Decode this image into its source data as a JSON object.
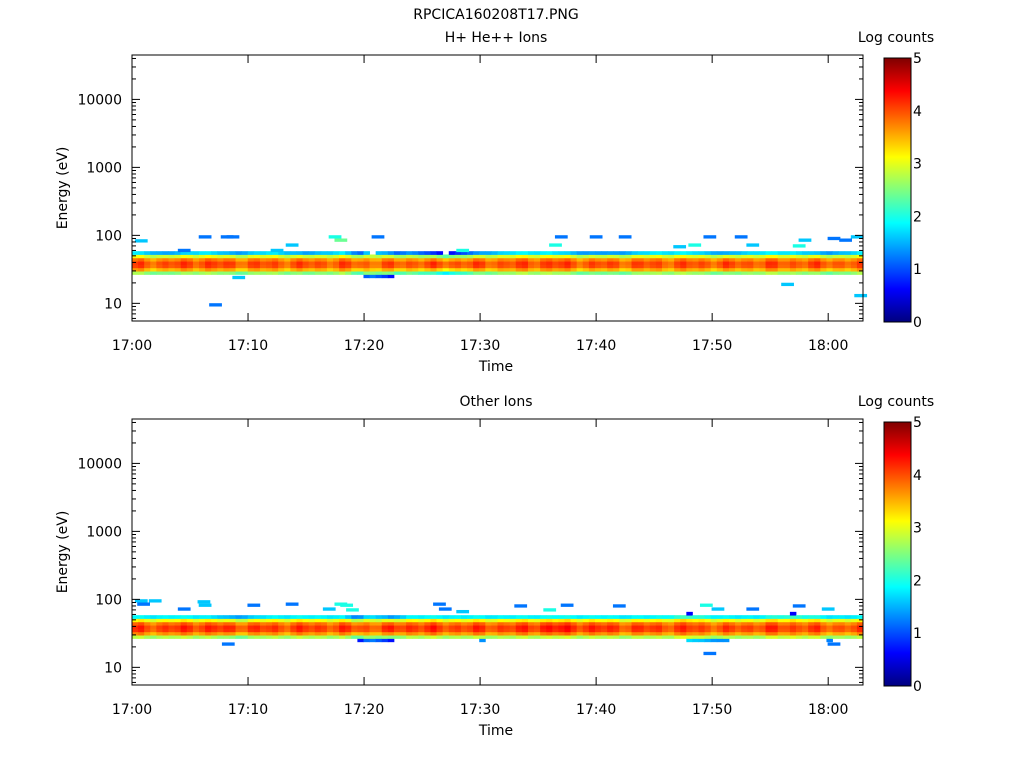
{
  "figure": {
    "title": "RPCICA160208T17.PNG"
  },
  "colormap": [
    "#00007f",
    "#0000ff",
    "#007fff",
    "#00ffff",
    "#7fff7f",
    "#ffff00",
    "#ff7f00",
    "#ff0000",
    "#7f0000"
  ],
  "chart_data": [
    {
      "type": "heatmap",
      "title": "H+ He++ Ions",
      "xlabel": "Time",
      "ylabel": "Energy (eV)",
      "x_ticks": [
        "17:00",
        "17:10",
        "17:20",
        "17:30",
        "17:40",
        "17:50",
        "18:00"
      ],
      "x_range_minutes": [
        0,
        63
      ],
      "y_scale": "log",
      "y_range": [
        5.5,
        45000
      ],
      "y_ticks": [
        "10",
        "100",
        "1000",
        "10000"
      ],
      "colorbar": {
        "label": "Log counts",
        "range": [
          0,
          5
        ],
        "ticks": [
          "0",
          "1",
          "2",
          "3",
          "4",
          "5"
        ]
      },
      "band": {
        "core_energy_eV": [
          33,
          45
        ],
        "low_energy_eV": 27,
        "high_energy_eV": 60
      },
      "columns": [
        {
          "x": 0,
          "lo": 27,
          "hi": 60,
          "peak": 4.0
        },
        {
          "x": 3,
          "lo": 28,
          "hi": 58,
          "peak": 4.0
        },
        {
          "x": 6,
          "lo": 28,
          "hi": 60,
          "peak": 4.1
        },
        {
          "x": 9,
          "lo": 28,
          "hi": 58,
          "peak": 4.0
        },
        {
          "x": 12,
          "lo": 28,
          "hi": 60,
          "peak": 4.0
        },
        {
          "x": 15,
          "lo": 28,
          "hi": 58,
          "peak": 4.0
        },
        {
          "x": 18,
          "lo": 28,
          "hi": 60,
          "peak": 4.0
        },
        {
          "x": 20.5,
          "lo": 24,
          "hi": 55,
          "peak": 3.9
        },
        {
          "x": 24,
          "lo": 26,
          "hi": 58,
          "peak": 4.0
        },
        {
          "x": 27,
          "lo": 27,
          "hi": 55,
          "peak": 4.0
        },
        {
          "x": 30,
          "lo": 27,
          "hi": 58,
          "peak": 4.0
        },
        {
          "x": 33,
          "lo": 28,
          "hi": 60,
          "peak": 4.0
        },
        {
          "x": 36,
          "lo": 27,
          "hi": 60,
          "peak": 4.1
        },
        {
          "x": 39,
          "lo": 27,
          "hi": 58,
          "peak": 4.0
        },
        {
          "x": 42,
          "lo": 27,
          "hi": 58,
          "peak": 4.0
        },
        {
          "x": 45,
          "lo": 28,
          "hi": 60,
          "peak": 4.0
        },
        {
          "x": 48,
          "lo": 28,
          "hi": 60,
          "peak": 4.0
        },
        {
          "x": 51,
          "lo": 28,
          "hi": 58,
          "peak": 4.0
        },
        {
          "x": 54,
          "lo": 28,
          "hi": 60,
          "peak": 4.0
        },
        {
          "x": 57,
          "lo": 27,
          "hi": 60,
          "peak": 4.0
        },
        {
          "x": 60,
          "lo": 27,
          "hi": 58,
          "peak": 4.0
        },
        {
          "x": 63,
          "lo": 27,
          "hi": 60,
          "peak": 3.9
        }
      ],
      "sparse_pixels": [
        {
          "t": 0.8,
          "e": 83,
          "v": 0.4
        },
        {
          "t": 4.5,
          "e": 60,
          "v": 0.3
        },
        {
          "t": 6.3,
          "e": 95,
          "v": 0.3
        },
        {
          "t": 8.2,
          "e": 95,
          "v": 0.3
        },
        {
          "t": 8.7,
          "e": 95,
          "v": 0.3
        },
        {
          "t": 7.2,
          "e": 9.5,
          "v": 0.3
        },
        {
          "t": 9.2,
          "e": 24,
          "v": 0.4
        },
        {
          "t": 12.5,
          "e": 60,
          "v": 0.4
        },
        {
          "t": 13.8,
          "e": 72,
          "v": 0.4
        },
        {
          "t": 17.5,
          "e": 95,
          "v": 0.5
        },
        {
          "t": 18.0,
          "e": 85,
          "v": 0.6
        },
        {
          "t": 21.2,
          "e": 95,
          "v": 0.3
        },
        {
          "t": 28.5,
          "e": 60,
          "v": 0.5
        },
        {
          "t": 36.5,
          "e": 72,
          "v": 0.5
        },
        {
          "t": 37.0,
          "e": 95,
          "v": 0.3
        },
        {
          "t": 40.0,
          "e": 95,
          "v": 0.3
        },
        {
          "t": 42.5,
          "e": 95,
          "v": 0.3
        },
        {
          "t": 47.2,
          "e": 68,
          "v": 0.4
        },
        {
          "t": 48.5,
          "e": 72,
          "v": 0.5
        },
        {
          "t": 49.8,
          "e": 95,
          "v": 0.3
        },
        {
          "t": 52.5,
          "e": 95,
          "v": 0.3
        },
        {
          "t": 53.5,
          "e": 72,
          "v": 0.4
        },
        {
          "t": 56.5,
          "e": 19,
          "v": 0.4
        },
        {
          "t": 57.5,
          "e": 70,
          "v": 0.5
        },
        {
          "t": 58.0,
          "e": 85,
          "v": 0.4
        },
        {
          "t": 60.5,
          "e": 90,
          "v": 0.3
        },
        {
          "t": 62.5,
          "e": 95,
          "v": 0.4
        },
        {
          "t": 62.8,
          "e": 13,
          "v": 0.4
        },
        {
          "t": 61.5,
          "e": 85,
          "v": 0.3
        }
      ]
    },
    {
      "type": "heatmap",
      "title": "Other Ions",
      "xlabel": "Time",
      "ylabel": "Energy (eV)",
      "x_ticks": [
        "17:00",
        "17:10",
        "17:20",
        "17:30",
        "17:40",
        "17:50",
        "18:00"
      ],
      "x_range_minutes": [
        0,
        63
      ],
      "y_scale": "log",
      "y_range": [
        5.5,
        45000
      ],
      "y_ticks": [
        "10",
        "100",
        "1000",
        "10000"
      ],
      "colorbar": {
        "label": "Log counts",
        "range": [
          0,
          5
        ],
        "ticks": [
          "0",
          "1",
          "2",
          "3",
          "4",
          "5"
        ]
      },
      "band": {
        "core_energy_eV": [
          33,
          45
        ],
        "low_energy_eV": 27,
        "high_energy_eV": 60
      },
      "columns": [
        {
          "x": 0,
          "lo": 27,
          "hi": 60,
          "peak": 4.1
        },
        {
          "x": 3,
          "lo": 27,
          "hi": 60,
          "peak": 4.1
        },
        {
          "x": 6,
          "lo": 27,
          "hi": 60,
          "peak": 4.2
        },
        {
          "x": 9,
          "lo": 27,
          "hi": 58,
          "peak": 4.1
        },
        {
          "x": 12,
          "lo": 27,
          "hi": 60,
          "peak": 4.1
        },
        {
          "x": 15,
          "lo": 27,
          "hi": 60,
          "peak": 4.1
        },
        {
          "x": 18,
          "lo": 27,
          "hi": 60,
          "peak": 4.1
        },
        {
          "x": 20.5,
          "lo": 24,
          "hi": 55,
          "peak": 4.0
        },
        {
          "x": 24,
          "lo": 26,
          "hi": 60,
          "peak": 4.2
        },
        {
          "x": 27,
          "lo": 27,
          "hi": 60,
          "peak": 4.1
        },
        {
          "x": 30,
          "lo": 25,
          "hi": 60,
          "peak": 4.1
        },
        {
          "x": 33,
          "lo": 27,
          "hi": 60,
          "peak": 4.1
        },
        {
          "x": 36,
          "lo": 27,
          "hi": 60,
          "peak": 4.3
        },
        {
          "x": 39,
          "lo": 27,
          "hi": 60,
          "peak": 4.2
        },
        {
          "x": 42,
          "lo": 27,
          "hi": 60,
          "peak": 4.1
        },
        {
          "x": 45,
          "lo": 27,
          "hi": 60,
          "peak": 4.1
        },
        {
          "x": 48,
          "lo": 25,
          "hi": 62,
          "peak": 4.1
        },
        {
          "x": 51,
          "lo": 25,
          "hi": 60,
          "peak": 4.0
        },
        {
          "x": 54,
          "lo": 27,
          "hi": 60,
          "peak": 4.1
        },
        {
          "x": 57,
          "lo": 27,
          "hi": 62,
          "peak": 4.1
        },
        {
          "x": 60,
          "lo": 25,
          "hi": 60,
          "peak": 4.0
        },
        {
          "x": 63,
          "lo": 27,
          "hi": 60,
          "peak": 4.0
        }
      ],
      "sparse_pixels": [
        {
          "t": 0.8,
          "e": 95,
          "v": 0.4
        },
        {
          "t": 2.0,
          "e": 95,
          "v": 0.4
        },
        {
          "t": 1.0,
          "e": 85,
          "v": 0.3
        },
        {
          "t": 4.5,
          "e": 72,
          "v": 0.3
        },
        {
          "t": 6.2,
          "e": 92,
          "v": 0.4
        },
        {
          "t": 6.3,
          "e": 82,
          "v": 0.4
        },
        {
          "t": 8.3,
          "e": 22,
          "v": 0.3
        },
        {
          "t": 10.5,
          "e": 82,
          "v": 0.3
        },
        {
          "t": 13.8,
          "e": 85,
          "v": 0.3
        },
        {
          "t": 17.0,
          "e": 72,
          "v": 0.4
        },
        {
          "t": 18.0,
          "e": 85,
          "v": 0.5
        },
        {
          "t": 18.5,
          "e": 82,
          "v": 0.5
        },
        {
          "t": 19.0,
          "e": 70,
          "v": 0.5
        },
        {
          "t": 26.5,
          "e": 85,
          "v": 0.3
        },
        {
          "t": 27.0,
          "e": 72,
          "v": 0.3
        },
        {
          "t": 28.5,
          "e": 66,
          "v": 0.4
        },
        {
          "t": 33.5,
          "e": 80,
          "v": 0.3
        },
        {
          "t": 36.0,
          "e": 70,
          "v": 0.5
        },
        {
          "t": 37.5,
          "e": 82,
          "v": 0.3
        },
        {
          "t": 42.0,
          "e": 80,
          "v": 0.3
        },
        {
          "t": 49.5,
          "e": 82,
          "v": 0.5
        },
        {
          "t": 49.8,
          "e": 16,
          "v": 0.3
        },
        {
          "t": 50.5,
          "e": 72,
          "v": 0.4
        },
        {
          "t": 53.5,
          "e": 72,
          "v": 0.3
        },
        {
          "t": 57.5,
          "e": 80,
          "v": 0.3
        },
        {
          "t": 60.0,
          "e": 72,
          "v": 0.4
        },
        {
          "t": 60.5,
          "e": 22,
          "v": 0.3
        }
      ]
    }
  ]
}
